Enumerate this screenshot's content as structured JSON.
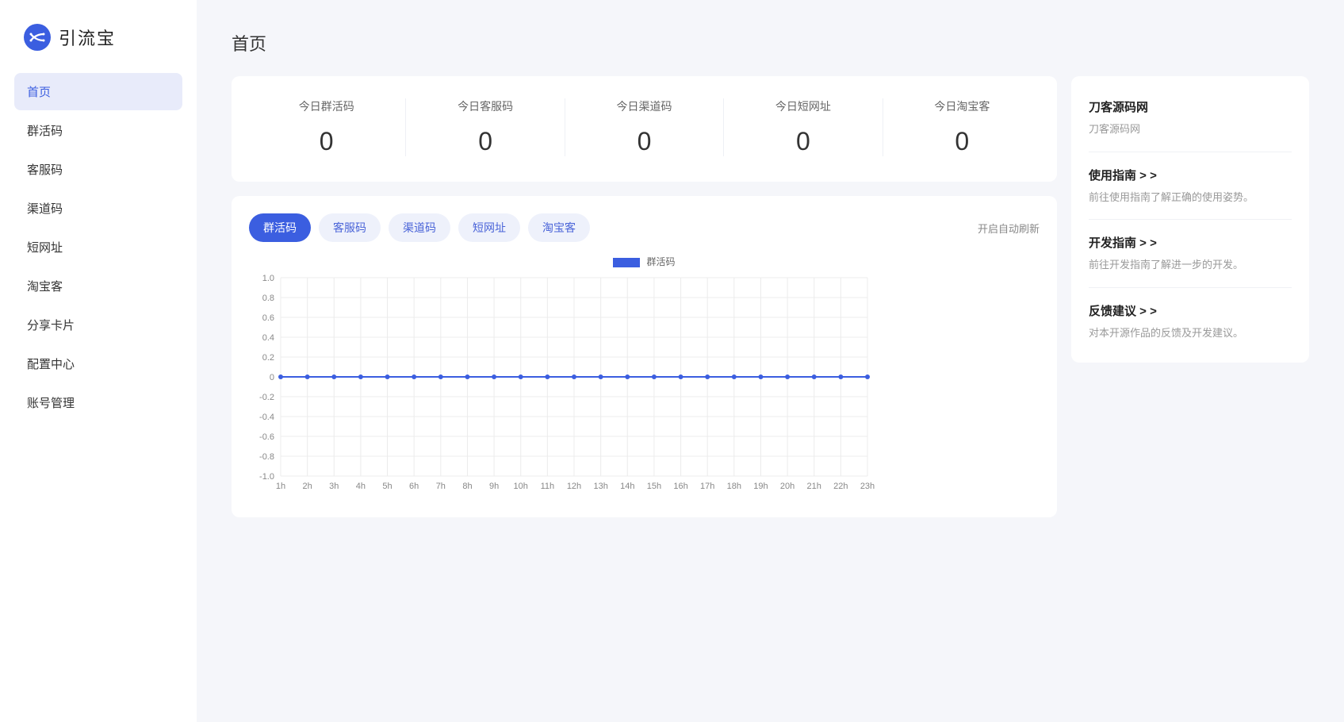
{
  "brand": {
    "name": "引流宝"
  },
  "sidebar": {
    "items": [
      {
        "label": "首页",
        "active": true
      },
      {
        "label": "群活码",
        "active": false
      },
      {
        "label": "客服码",
        "active": false
      },
      {
        "label": "渠道码",
        "active": false
      },
      {
        "label": "短网址",
        "active": false
      },
      {
        "label": "淘宝客",
        "active": false
      },
      {
        "label": "分享卡片",
        "active": false
      },
      {
        "label": "配置中心",
        "active": false
      },
      {
        "label": "账号管理",
        "active": false
      }
    ]
  },
  "page": {
    "title": "首页"
  },
  "stats": [
    {
      "label": "今日群活码",
      "value": "0"
    },
    {
      "label": "今日客服码",
      "value": "0"
    },
    {
      "label": "今日渠道码",
      "value": "0"
    },
    {
      "label": "今日短网址",
      "value": "0"
    },
    {
      "label": "今日淘宝客",
      "value": "0"
    }
  ],
  "tabs": [
    {
      "label": "群活码",
      "active": true
    },
    {
      "label": "客服码",
      "active": false
    },
    {
      "label": "渠道码",
      "active": false
    },
    {
      "label": "短网址",
      "active": false
    },
    {
      "label": "淘宝客",
      "active": false
    }
  ],
  "auto_refresh_label": "开启自动刷新",
  "chart": {
    "type": "line",
    "legend_label": "群活码",
    "series_color": "#3b5ee0",
    "point_color": "#3b5ee0",
    "line_width": 2,
    "point_radius": 3,
    "grid_color": "#ececec",
    "axis_text_color": "#888888",
    "background_color": "#ffffff",
    "ylim": [
      -1.0,
      1.0
    ],
    "ytick_step": 0.2,
    "yticks": [
      "1.0",
      "0.8",
      "0.6",
      "0.4",
      "0.2",
      "0",
      "-0.2",
      "-0.4",
      "-0.6",
      "-0.8",
      "-1.0"
    ],
    "xticks": [
      "1h",
      "2h",
      "3h",
      "4h",
      "5h",
      "6h",
      "7h",
      "8h",
      "9h",
      "10h",
      "11h",
      "12h",
      "13h",
      "14h",
      "15h",
      "16h",
      "17h",
      "18h",
      "19h",
      "20h",
      "21h",
      "22h",
      "23h"
    ],
    "values": [
      0,
      0,
      0,
      0,
      0,
      0,
      0,
      0,
      0,
      0,
      0,
      0,
      0,
      0,
      0,
      0,
      0,
      0,
      0,
      0,
      0,
      0,
      0
    ]
  },
  "info_panel": [
    {
      "title": "刀客源码网",
      "desc": "刀客源码网"
    },
    {
      "title": "使用指南 > >",
      "desc": "前往使用指南了解正确的使用姿势。"
    },
    {
      "title": "开发指南 > >",
      "desc": "前往开发指南了解进一步的开发。"
    },
    {
      "title": "反馈建议 > >",
      "desc": "对本开源作品的反馈及开发建议。"
    }
  ],
  "colors": {
    "primary": "#3b5ee0",
    "sidebar_active_bg": "#e8ebfa",
    "tab_inactive_bg": "#eef1fb",
    "page_bg": "#f5f6fa",
    "card_bg": "#ffffff",
    "text_primary": "#333333",
    "text_muted": "#999999",
    "divider": "#eef0f5"
  }
}
